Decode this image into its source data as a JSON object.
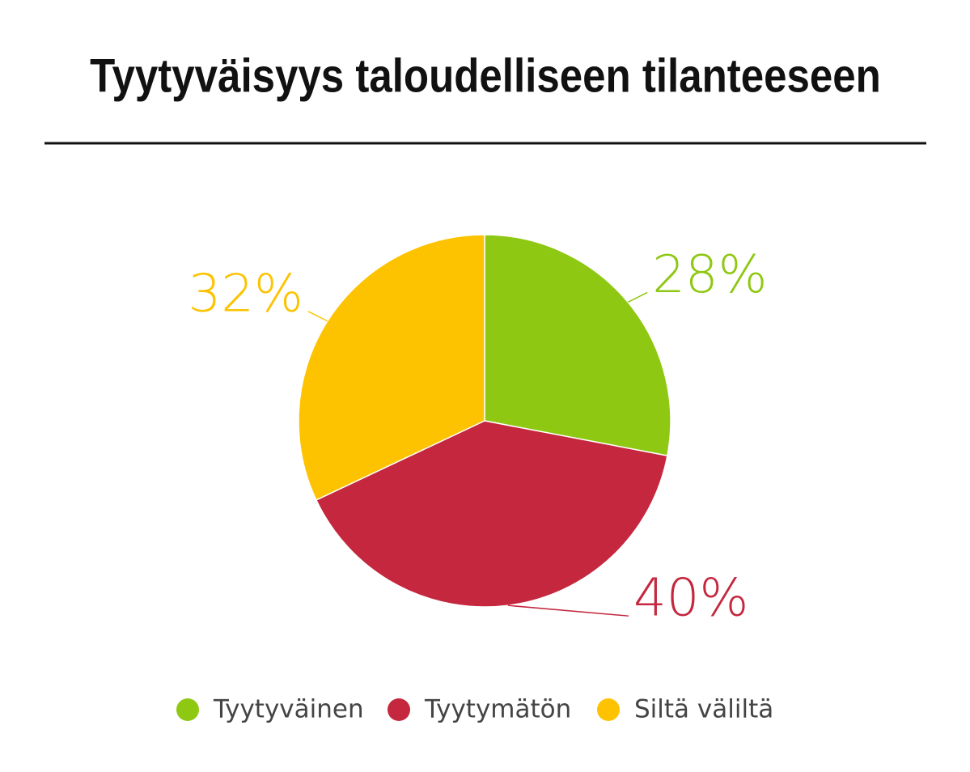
{
  "chart_data": {
    "type": "pie",
    "title": "Tyytyväisyys taloudelliseen tilanteeseen",
    "categories": [
      "Tyytyväinen",
      "Tyytymätön",
      "Siltä väliltä"
    ],
    "values": [
      28,
      40,
      32
    ],
    "value_labels": [
      "28%",
      "40%",
      "32%"
    ],
    "colors": [
      "#8fc813",
      "#c4273e",
      "#fdc300"
    ]
  }
}
